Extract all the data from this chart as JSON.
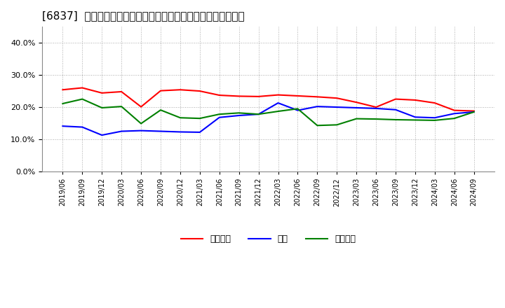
{
  "title": "[6837]  売上債権、在庫、買入債務の総資産に対する比率の推移",
  "x_labels": [
    "2019/06",
    "2019/09",
    "2019/12",
    "2020/03",
    "2020/06",
    "2020/09",
    "2020/12",
    "2021/03",
    "2021/06",
    "2021/09",
    "2021/12",
    "2022/03",
    "2022/06",
    "2022/09",
    "2022/12",
    "2023/03",
    "2023/06",
    "2023/09",
    "2023/12",
    "2024/03",
    "2024/06",
    "2024/09"
  ],
  "uriken": [
    0.254,
    0.26,
    0.244,
    0.248,
    0.201,
    0.251,
    0.254,
    0.25,
    0.237,
    0.234,
    0.233,
    0.238,
    0.235,
    0.232,
    0.228,
    0.215,
    0.2,
    0.225,
    0.222,
    0.213,
    0.19,
    0.188
  ],
  "zaiko": [
    0.141,
    0.138,
    0.113,
    0.125,
    0.127,
    0.125,
    0.123,
    0.122,
    0.168,
    0.174,
    0.178,
    0.213,
    0.19,
    0.202,
    0.2,
    0.198,
    0.196,
    0.192,
    0.169,
    0.167,
    0.18,
    0.185
  ],
  "kaiire": [
    0.211,
    0.225,
    0.198,
    0.202,
    0.149,
    0.191,
    0.167,
    0.165,
    0.178,
    0.182,
    0.178,
    0.187,
    0.195,
    0.143,
    0.145,
    0.164,
    0.163,
    0.161,
    0.16,
    0.159,
    0.165,
    0.185
  ],
  "uriken_color": "#FF0000",
  "zaiko_color": "#0000FF",
  "kaiire_color": "#008000",
  "uriken_label": "売上債権",
  "zaiko_label": "在庫",
  "kaiire_label": "買入債務",
  "ylim": [
    0.0,
    0.45
  ],
  "yticks": [
    0.0,
    0.1,
    0.2,
    0.3,
    0.4
  ],
  "background_color": "#FFFFFF",
  "plot_bg_color": "#FFFFFF",
  "grid_color": "#AAAAAA",
  "title_fontsize": 11
}
